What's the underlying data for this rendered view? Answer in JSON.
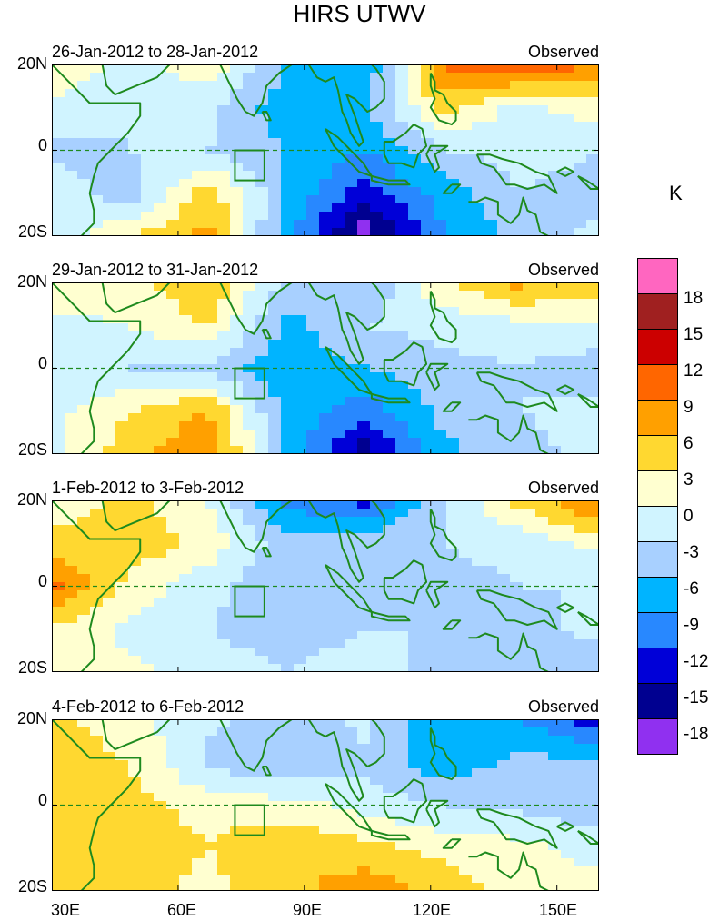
{
  "figure": {
    "title": "HIRS UTWV",
    "unit": "K",
    "colors": {
      "land_outline": "#1e8a1e",
      "equator_line": "#1e8a1e",
      "box_outline": "#1e8a1e"
    }
  },
  "panels": [
    {
      "date_range": "26-Jan-2012 to 28-Jan-2012",
      "label": "Observed"
    },
    {
      "date_range": "29-Jan-2012 to 31-Jan-2012",
      "label": "Observed"
    },
    {
      "date_range": "1-Feb-2012 to 3-Feb-2012",
      "label": "Observed"
    },
    {
      "date_range": "4-Feb-2012 to 6-Feb-2012",
      "label": "Observed"
    }
  ],
  "lat_labels": {
    "north": "20N",
    "equator": "0",
    "south": "20S"
  },
  "lon_labels": [
    "30E",
    "60E",
    "90E",
    "120E",
    "150E"
  ],
  "colorbar": {
    "colors": [
      "#ff66c0",
      "#a02020",
      "#cc0000",
      "#ff6600",
      "#ffa000",
      "#ffd830",
      "#ffffd0",
      "#d0f4ff",
      "#a8d0ff",
      "#00b4ff",
      "#2888ff",
      "#0000d8",
      "#000090",
      "#9030f0"
    ],
    "labels": [
      "18",
      "15",
      "12",
      "9",
      "6",
      "3",
      "0",
      "-3",
      "-6",
      "-9",
      "-12",
      "-15",
      "-18"
    ]
  },
  "chart_data": {
    "type": "heatmap",
    "title": "HIRS UTWV",
    "unit": "K",
    "x_range": [
      "30E",
      "160E"
    ],
    "y_range": [
      "20S",
      "20N"
    ],
    "xticks": [
      "30E",
      "60E",
      "90E",
      "120E",
      "150E"
    ],
    "yticks": [
      "20N",
      "0",
      "20S"
    ],
    "levels": [
      -18,
      -15,
      -12,
      -9,
      -6,
      -3,
      0,
      3,
      6,
      9,
      12,
      15,
      18
    ],
    "note": "Gridded anomaly values (K) approximated on a coarse 5x8 grid, rows from 20N to 20S, columns from 30E to 160E",
    "grid_lat": [
      20,
      10,
      0,
      -10,
      -20
    ],
    "grid_lon": [
      30,
      48,
      67,
      86,
      104,
      123,
      141,
      160
    ],
    "panels": [
      {
        "period": "26-Jan-2012 to 28-Jan-2012",
        "values": [
          [
            3,
            -1,
            2,
            -6,
            -9,
            10,
            12,
            9
          ],
          [
            -1,
            -3,
            -2,
            -8,
            -7,
            4,
            -1,
            2
          ],
          [
            -4,
            -3,
            -3,
            -6,
            -9,
            -3,
            -2,
            -3
          ],
          [
            -1,
            -5,
            5,
            -6,
            -14,
            -8,
            -3,
            -4
          ],
          [
            -2,
            3,
            7,
            -8,
            -20,
            -9,
            -5,
            -2
          ]
        ]
      },
      {
        "period": "29-Jan-2012 to 31-Jan-2012",
        "values": [
          [
            3,
            2,
            6,
            -4,
            -6,
            3,
            7,
            4
          ],
          [
            -1,
            0,
            3,
            -7,
            -3,
            -2,
            -1,
            0
          ],
          [
            -2,
            -3,
            -4,
            -8,
            -6,
            -4,
            -3,
            -5
          ],
          [
            -1,
            3,
            6,
            -7,
            -11,
            -5,
            -3,
            -2
          ],
          [
            -1,
            5,
            9,
            -6,
            -17,
            -7,
            -4,
            -2
          ]
        ]
      },
      {
        "period": "1-Feb-2012 to 3-Feb-2012",
        "values": [
          [
            1,
            4,
            0,
            -10,
            -13,
            -3,
            4,
            10
          ],
          [
            4,
            5,
            2,
            -5,
            -4,
            -3,
            -2,
            1
          ],
          [
            10,
            2,
            -2,
            -6,
            -5,
            -4,
            -3,
            -3
          ],
          [
            3,
            -1,
            -3,
            -4,
            -3,
            -3,
            -4,
            -2
          ],
          [
            0,
            1,
            -2,
            -3,
            -2,
            -4,
            -4,
            -5
          ]
        ]
      },
      {
        "period": "4-Feb-2012 to 6-Feb-2012",
        "values": [
          [
            4,
            1,
            -2,
            -6,
            -2,
            -9,
            -9,
            -14
          ],
          [
            5,
            3,
            -4,
            -6,
            -4,
            -8,
            -5,
            -6
          ],
          [
            4,
            4,
            2,
            1,
            -1,
            -3,
            -4,
            -6
          ],
          [
            3,
            5,
            3,
            6,
            4,
            2,
            1,
            -1
          ],
          [
            3,
            4,
            2,
            5,
            8,
            5,
            1,
            1
          ]
        ]
      }
    ]
  }
}
